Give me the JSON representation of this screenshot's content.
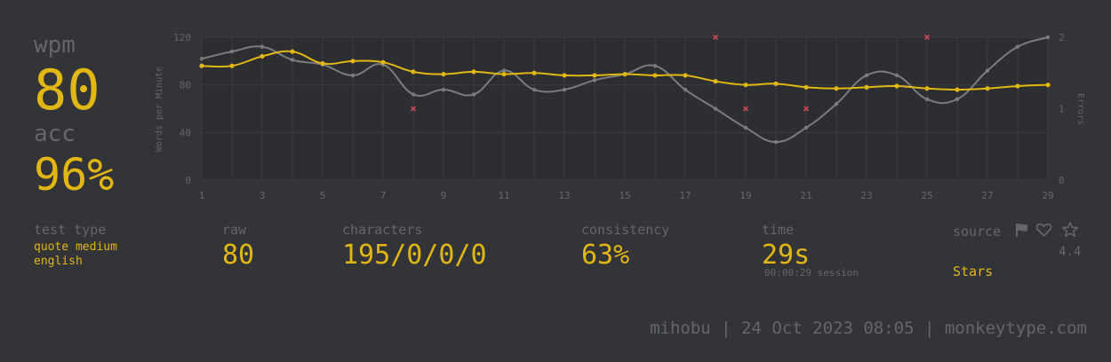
{
  "stats": {
    "wpm_label": "wpm",
    "wpm_value": "80",
    "acc_label": "acc",
    "acc_value": "96%"
  },
  "details": {
    "test_type_label": "test type",
    "test_type_line1": "quote medium",
    "test_type_line2": "english",
    "raw_label": "raw",
    "raw_value": "80",
    "characters_label": "characters",
    "characters_value": "195/0/0/0",
    "consistency_label": "consistency",
    "consistency_value": "63%",
    "time_label": "time",
    "time_value": "29s",
    "session_value": "00:00:29 session",
    "source_label": "source",
    "rating_value": "4.4",
    "stars_label": "Stars"
  },
  "footer": {
    "text": "mihobu | 24 Oct 2023 08:05 | monkeytype.com"
  },
  "icons": {
    "flag": "flag-icon",
    "heart": "heart-icon",
    "star": "star-icon"
  },
  "colors": {
    "background": "#323437",
    "plot_background": "#2c2e31",
    "main": "#e2b714",
    "sub": "#646669",
    "raw_line": "#7a7c7e",
    "error": "#ca4754"
  },
  "chart_data": {
    "type": "line",
    "x": [
      1,
      2,
      3,
      4,
      5,
      6,
      7,
      8,
      9,
      10,
      11,
      12,
      13,
      14,
      15,
      16,
      17,
      18,
      19,
      20,
      21,
      22,
      23,
      24,
      25,
      26,
      27,
      28,
      29
    ],
    "x_ticks": [
      1,
      3,
      5,
      7,
      9,
      11,
      13,
      15,
      17,
      19,
      21,
      23,
      25,
      27,
      29
    ],
    "ylabel": "Words per Minute",
    "ylim": [
      0,
      120
    ],
    "y_ticks": [
      0,
      40,
      80,
      120
    ],
    "y2label": "Errors",
    "y2lim": [
      0,
      2
    ],
    "y2_ticks": [
      0,
      1,
      2
    ],
    "grid": true,
    "series": [
      {
        "values": [
          96,
          96,
          104,
          108,
          98,
          100,
          99,
          91,
          89,
          91,
          89,
          90,
          88,
          88,
          89,
          88,
          88,
          83,
          80,
          81,
          78,
          77,
          78,
          79,
          77,
          76,
          77,
          79,
          80
        ],
        "color": "#e2b714",
        "axis": "y"
      },
      {
        "values": [
          102,
          108,
          112,
          101,
          97,
          88,
          97,
          72,
          76,
          72,
          92,
          76,
          76,
          84,
          89,
          96,
          76,
          60,
          44,
          32,
          44,
          64,
          88,
          88,
          68,
          68,
          92,
          112,
          120
        ],
        "color": "#7a7c7e",
        "axis": "y"
      },
      {
        "x": [
          8,
          18,
          19,
          21,
          25
        ],
        "values": [
          1,
          2,
          1,
          1,
          2
        ],
        "color": "#ca4754",
        "axis": "y2",
        "marker": "x"
      }
    ]
  }
}
